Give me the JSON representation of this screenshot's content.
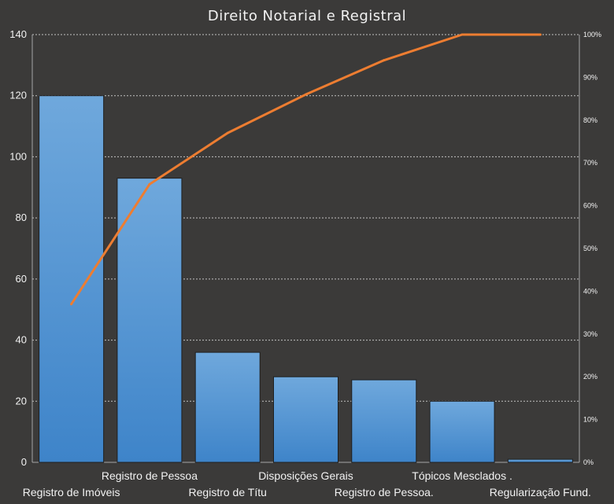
{
  "chart_data": {
    "type": "bar",
    "title": "Direito Notarial e Registral",
    "categories": [
      "Registro de Imóveis",
      "Registro de Pessoa",
      "Registro de Títu",
      "Disposições Gerais",
      "Registro de Pessoa.",
      "Tópicos Mesclados .",
      "Regularização Fund."
    ],
    "series": [
      {
        "type": "bar",
        "values": [
          120,
          93,
          36,
          28,
          27,
          20,
          1
        ]
      },
      {
        "type": "line",
        "axis": "secondary",
        "values": [
          37,
          65,
          77,
          86,
          94,
          100,
          100
        ]
      }
    ],
    "ylim": [
      0,
      140
    ],
    "yticks": [
      "0",
      "20",
      "40",
      "60",
      "80",
      "100",
      "120",
      "140"
    ],
    "y2lim": [
      0,
      100
    ],
    "y2ticks": [
      "0%",
      "10%",
      "20%",
      "30%",
      "40%",
      "50%",
      "60%",
      "70%",
      "80%",
      "90%",
      "100%"
    ],
    "grid": true,
    "colors": {
      "bar": "#5b9bd5",
      "bar_dark": "#3f83c8",
      "line": "#ed7d31",
      "background": "#3b3a39",
      "text": "#f2f2f2"
    }
  }
}
